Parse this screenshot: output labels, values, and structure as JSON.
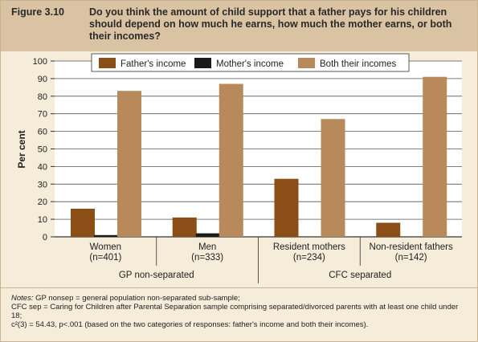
{
  "figure": {
    "label": "Figure 3.10",
    "title": "Do you think the amount of child support that a father pays for his children should depend on how much he earns, how much the mother earns, or both their incomes?"
  },
  "notes": {
    "prefix": "Notes:",
    "lines": [
      " GP nonsep = general population non-separated sub-sample;",
      "CFC sep = Caring for Children after Parental Separation sample comprising separated/divorced parents with at least one child under 18;",
      "c²(3) = 54.43, p<.001 (based on the two categories of responses: father's income and both their incomes)."
    ]
  },
  "chart_data": {
    "type": "bar",
    "ylabel": "Per cent",
    "ylim": [
      0,
      100
    ],
    "yticks": [
      0,
      10,
      20,
      30,
      40,
      50,
      60,
      70,
      80,
      90,
      100
    ],
    "categories": [
      "Women",
      "Men",
      "Resident mothers",
      "Non-resident fathers"
    ],
    "category_n": [
      "(n=401)",
      "(n=333)",
      "(n=234)",
      "(n=142)"
    ],
    "groups": [
      {
        "label": "GP non-separated",
        "categories": [
          0,
          1
        ]
      },
      {
        "label": "CFC separated",
        "categories": [
          2,
          3
        ]
      }
    ],
    "series": [
      {
        "name": "Father's income",
        "color": "#8b4e16",
        "values": [
          16,
          11,
          33,
          8
        ]
      },
      {
        "name": "Mother's income",
        "color": "#1a1a1a",
        "values": [
          1,
          2,
          0,
          0
        ]
      },
      {
        "name": "Both their incomes",
        "color": "#b8895a",
        "values": [
          83,
          87,
          67,
          91
        ]
      }
    ],
    "legend_position": "top-center",
    "grid": true
  }
}
